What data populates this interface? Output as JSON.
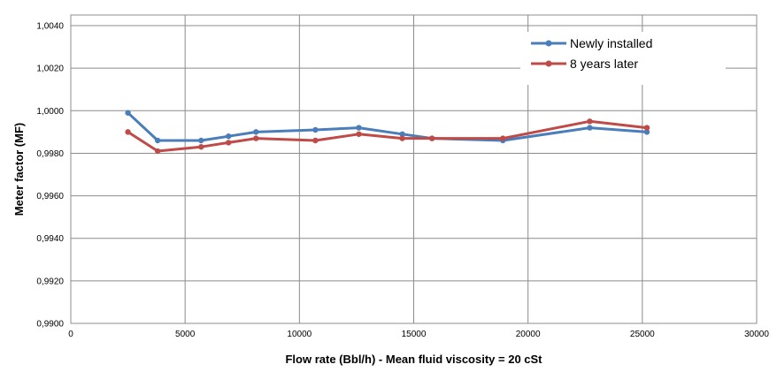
{
  "chart_data": {
    "type": "line",
    "xlabel": "Flow rate (Bbl/h) - Mean fluid viscosity = 20 cSt",
    "ylabel": "Meter factor (MF)",
    "xlim": [
      0,
      30000
    ],
    "ylim": [
      0.99,
      1.0045
    ],
    "x_ticks": [
      0,
      5000,
      10000,
      15000,
      20000,
      25000,
      30000
    ],
    "x_tick_labels": [
      "0",
      "5000",
      "10000",
      "15000",
      "20000",
      "25000",
      "30000"
    ],
    "y_ticks": [
      0.99,
      0.992,
      0.994,
      0.996,
      0.998,
      1.0,
      1.002,
      1.004
    ],
    "y_tick_labels": [
      "0,9900",
      "0,9920",
      "0,9940",
      "0,9960",
      "0,9980",
      "1,0000",
      "1,0020",
      "1,0040"
    ],
    "grid": true,
    "legend_position": "top-right",
    "series": [
      {
        "name": "Newly installed",
        "color": "#4a7ebb",
        "x": [
          2500,
          3800,
          5700,
          6900,
          8100,
          10700,
          12600,
          14500,
          15800,
          18900,
          22700,
          25200
        ],
        "y": [
          0.9999,
          0.9986,
          0.9986,
          0.9988,
          0.999,
          0.9991,
          0.9992,
          0.9989,
          0.9987,
          0.9986,
          0.9992,
          0.999
        ]
      },
      {
        "name": "8 years later",
        "color": "#be4b48",
        "x": [
          2500,
          3800,
          5700,
          6900,
          8100,
          10700,
          12600,
          14500,
          15800,
          18900,
          22700,
          25200
        ],
        "y": [
          0.999,
          0.9981,
          0.9983,
          0.9985,
          0.9987,
          0.9986,
          0.9989,
          0.9987,
          0.9987,
          0.9987,
          0.9995,
          0.9992
        ]
      }
    ]
  }
}
